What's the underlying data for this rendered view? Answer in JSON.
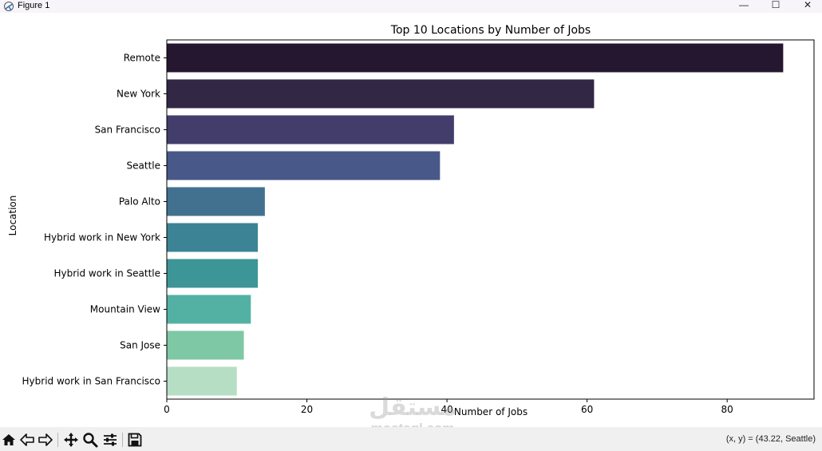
{
  "window": {
    "title": "Figure 1",
    "controls": {
      "minimize": "—",
      "maximize": "☐",
      "close": "✕"
    }
  },
  "toolbar": {
    "buttons": [
      {
        "name": "home-icon"
      },
      {
        "name": "back-arrow-icon"
      },
      {
        "name": "forward-arrow-icon"
      },
      {
        "name": "pan-icon"
      },
      {
        "name": "zoom-icon"
      },
      {
        "name": "configure-subplots-icon"
      },
      {
        "name": "save-icon"
      }
    ],
    "coordinate_readout": "(x, y) = (43.22, Seattle)"
  },
  "watermark": {
    "arabic": "مستقل",
    "latin": "mostaql.com"
  },
  "chart_data": {
    "type": "bar",
    "orientation": "horizontal",
    "title": "Top 10 Locations by Number of Jobs",
    "xlabel": "Number of Jobs",
    "ylabel": "Location",
    "categories": [
      "Remote",
      "New York",
      "San Francisco",
      "Seattle",
      "Palo Alto",
      "Hybrid work in New York",
      "Hybrid work in Seattle",
      "Mountain View",
      "San Jose",
      "Hybrid work in San Francisco"
    ],
    "values": [
      88,
      61,
      41,
      39,
      14,
      13,
      13,
      12,
      11,
      10
    ],
    "colors": [
      "#24172f",
      "#322744",
      "#433d6b",
      "#475889",
      "#42718f",
      "#3c8396",
      "#3e9597",
      "#53b1a4",
      "#7ec8a5",
      "#b6dec4"
    ],
    "xlim": [
      0,
      92.4
    ],
    "xticks": [
      0,
      20,
      40,
      60,
      80
    ],
    "grid": false,
    "legend": "none"
  }
}
